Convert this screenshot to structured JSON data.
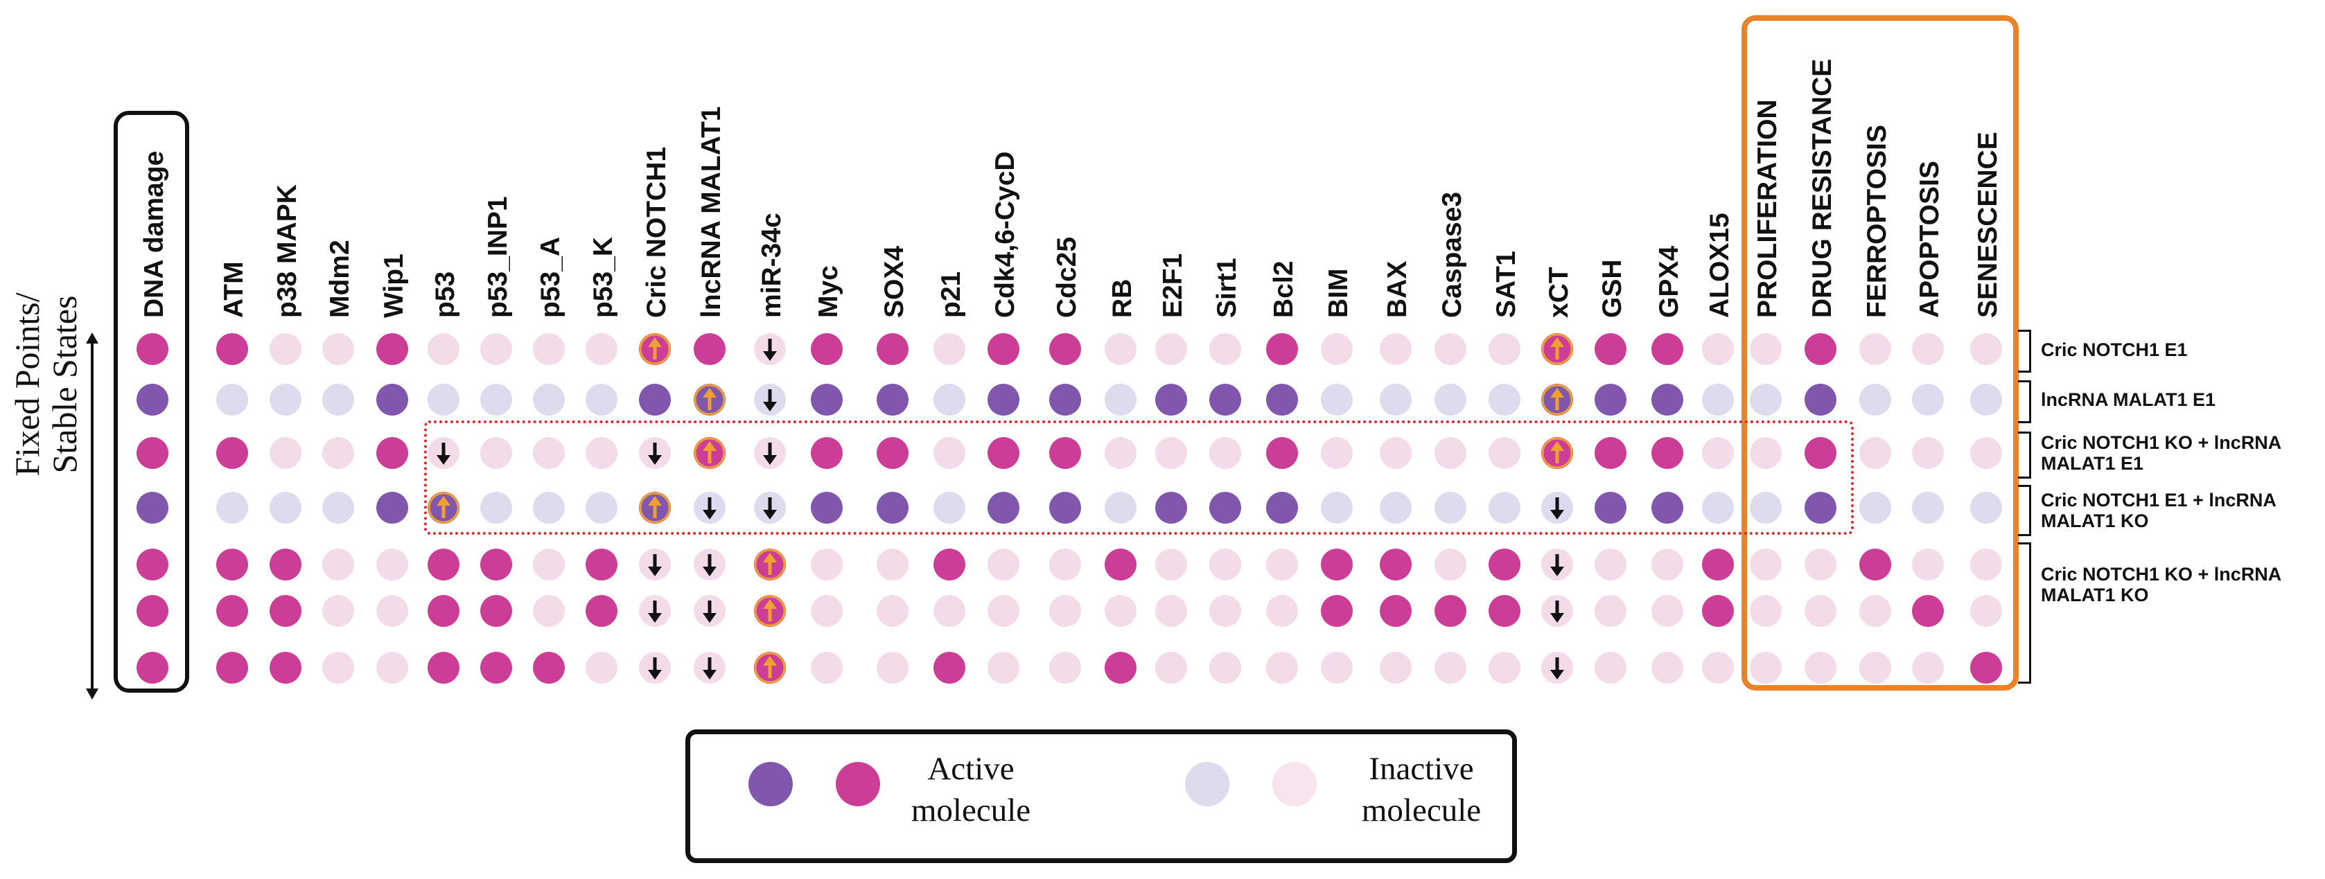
{
  "axis_title": {
    "line1": "Fixed Points/",
    "line2": "Stable States"
  },
  "columns": [
    "DNA damage",
    "ATM",
    "p38 MAPK",
    "Mdm2",
    "Wip1",
    "p53",
    "p53_INP1",
    "p53_A",
    "p53_K",
    "Cric NOTCH1",
    "lncRNA MALAT1",
    "miR-34c",
    "Myc",
    "SOX4",
    "p21",
    "Cdk4,6-CycD",
    "Cdc25",
    "RB",
    "E2F1",
    "Sirt1",
    "Bcl2",
    "BIM",
    "BAX",
    "Caspase3",
    "SAT1",
    "xCT",
    "GSH",
    "GPX4",
    "ALOX15",
    "PROLIFERATION",
    "DRUG RESISTANCE",
    "FERROPTOSIS",
    "APOPTOSIS",
    "SENESCENCE"
  ],
  "state_key": {
    "P": "active molecule (magenta)",
    "V": "active molecule (purple)",
    "p": "inactive molecule (light pink)",
    "v": "inactive molecule (light lavender)",
    "U": "overexpression (up arrow)",
    "D": "knockout (down arrow)"
  },
  "rows": [
    {
      "dots": [
        "P",
        "P",
        "p",
        "p",
        "P",
        "p",
        "p",
        "p",
        "p",
        "P",
        "P",
        "p",
        "P",
        "P",
        "p",
        "P",
        "P",
        "p",
        "p",
        "p",
        "P",
        "p",
        "p",
        "p",
        "p",
        "P",
        "P",
        "P",
        "p",
        "p",
        "P",
        "p",
        "p",
        "p"
      ],
      "marks": [
        "",
        "",
        "",
        "",
        "",
        "",
        "",
        "",
        "",
        "U",
        "",
        "D",
        "",
        "",
        "",
        "",
        "",
        "",
        "",
        "",
        "",
        "",
        "",
        "",
        "",
        "U",
        "",
        "",
        "",
        "",
        "",
        "",
        "",
        ""
      ]
    },
    {
      "dots": [
        "V",
        "v",
        "v",
        "v",
        "V",
        "v",
        "v",
        "v",
        "v",
        "V",
        "V",
        "v",
        "V",
        "V",
        "v",
        "V",
        "V",
        "v",
        "V",
        "V",
        "V",
        "v",
        "v",
        "v",
        "v",
        "V",
        "V",
        "V",
        "v",
        "v",
        "V",
        "v",
        "v",
        "v"
      ],
      "marks": [
        "",
        "",
        "",
        "",
        "",
        "",
        "",
        "",
        "",
        "",
        "U",
        "D",
        "",
        "",
        "",
        "",
        "",
        "",
        "",
        "",
        "",
        "",
        "",
        "",
        "",
        "U",
        "",
        "",
        "",
        "",
        "",
        "",
        "",
        ""
      ]
    },
    {
      "dots": [
        "P",
        "P",
        "p",
        "p",
        "P",
        "p",
        "p",
        "p",
        "p",
        "p",
        "P",
        "p",
        "P",
        "P",
        "p",
        "P",
        "P",
        "p",
        "p",
        "p",
        "P",
        "p",
        "p",
        "p",
        "p",
        "P",
        "P",
        "P",
        "p",
        "p",
        "P",
        "p",
        "p",
        "p"
      ],
      "marks": [
        "",
        "",
        "",
        "",
        "",
        "D",
        "",
        "",
        "",
        "D",
        "U",
        "D",
        "",
        "",
        "",
        "",
        "",
        "",
        "",
        "",
        "",
        "",
        "",
        "",
        "",
        "U",
        "",
        "",
        "",
        "",
        "",
        "",
        "",
        ""
      ]
    },
    {
      "dots": [
        "V",
        "v",
        "v",
        "v",
        "V",
        "V",
        "v",
        "v",
        "v",
        "V",
        "v",
        "v",
        "V",
        "V",
        "v",
        "V",
        "V",
        "v",
        "V",
        "V",
        "V",
        "v",
        "v",
        "v",
        "v",
        "v",
        "V",
        "V",
        "v",
        "v",
        "V",
        "v",
        "v",
        "v"
      ],
      "marks": [
        "",
        "",
        "",
        "",
        "",
        "U",
        "",
        "",
        "",
        "U",
        "D",
        "D",
        "",
        "",
        "",
        "",
        "",
        "",
        "",
        "",
        "",
        "",
        "",
        "",
        "",
        "D",
        "",
        "",
        "",
        "",
        "",
        "",
        "",
        ""
      ]
    },
    {
      "dots": [
        "P",
        "P",
        "P",
        "p",
        "p",
        "P",
        "P",
        "p",
        "P",
        "p",
        "p",
        "P",
        "p",
        "p",
        "P",
        "p",
        "p",
        "P",
        "p",
        "p",
        "p",
        "P",
        "P",
        "p",
        "P",
        "p",
        "p",
        "p",
        "P",
        "p",
        "p",
        "P",
        "p",
        "p"
      ],
      "marks": [
        "",
        "",
        "",
        "",
        "",
        "",
        "",
        "",
        "",
        "D",
        "D",
        "U",
        "",
        "",
        "",
        "",
        "",
        "",
        "",
        "",
        "",
        "",
        "",
        "",
        "",
        "D",
        "",
        "",
        "",
        "",
        "",
        "",
        "",
        ""
      ]
    },
    {
      "dots": [
        "P",
        "P",
        "P",
        "p",
        "p",
        "P",
        "P",
        "p",
        "P",
        "p",
        "p",
        "P",
        "p",
        "p",
        "p",
        "p",
        "p",
        "p",
        "p",
        "p",
        "p",
        "P",
        "P",
        "P",
        "P",
        "p",
        "p",
        "p",
        "P",
        "p",
        "p",
        "p",
        "P",
        "p"
      ],
      "marks": [
        "",
        "",
        "",
        "",
        "",
        "",
        "",
        "",
        "",
        "D",
        "D",
        "U",
        "",
        "",
        "",
        "",
        "",
        "",
        "",
        "",
        "",
        "",
        "",
        "",
        "",
        "D",
        "",
        "",
        "",
        "",
        "",
        "",
        "",
        ""
      ]
    },
    {
      "dots": [
        "P",
        "P",
        "P",
        "p",
        "p",
        "P",
        "P",
        "P",
        "p",
        "p",
        "p",
        "P",
        "p",
        "p",
        "P",
        "p",
        "p",
        "P",
        "p",
        "p",
        "p",
        "p",
        "p",
        "p",
        "p",
        "p",
        "p",
        "p",
        "p",
        "p",
        "p",
        "p",
        "p",
        "P"
      ],
      "marks": [
        "",
        "",
        "",
        "",
        "",
        "",
        "",
        "",
        "",
        "D",
        "D",
        "U",
        "",
        "",
        "",
        "",
        "",
        "",
        "",
        "",
        "",
        "",
        "",
        "",
        "",
        "D",
        "",
        "",
        "",
        "",
        "",
        "",
        "",
        ""
      ]
    }
  ],
  "row_groups": [
    {
      "label": "Cric NOTCH1 E1"
    },
    {
      "label": "lncRNA MALAT1 E1"
    },
    {
      "label": "Cric NOTCH1 KO + lncRNA MALAT1 E1"
    },
    {
      "label": "Cric NOTCH1 E1 + lncRNA MALAT1 KO"
    },
    {
      "label": "Cric NOTCH1 KO + lncRNA MALAT1 KO"
    }
  ],
  "legend": {
    "active_line1": "Active",
    "active_line2": "molecule",
    "inactive_line1": "Inactive",
    "inactive_line2": "molecule",
    "colors": {
      "pink": "#cc3d97",
      "purple": "#8057ad",
      "light_pink": "#f3dbe9",
      "light_purple": "#dcdcee"
    }
  },
  "colors": {
    "up_arrow": "#f0a030",
    "outcome_box": "#e8832a",
    "perturbation_box": "#d42a2a"
  }
}
